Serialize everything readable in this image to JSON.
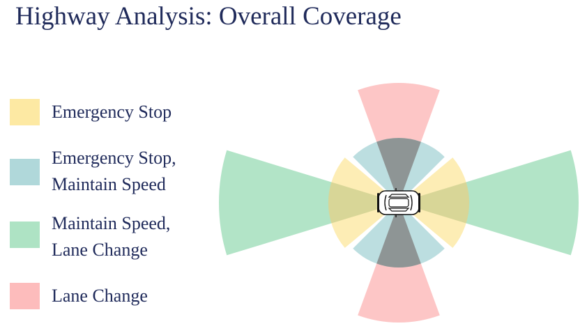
{
  "page": {
    "title": "Highway Analysis: Overall Coverage"
  },
  "legend": [
    {
      "lines": [
        "Emergency Stop"
      ],
      "color": "#fde9a3"
    },
    {
      "lines": [
        "Emergency Stop,",
        "Maintain Speed"
      ],
      "color": "#b0d8da"
    },
    {
      "lines": [
        "Maintain Speed,",
        "Lane Change"
      ],
      "color": "#aee3c4"
    },
    {
      "lines": [
        "Lane Change"
      ],
      "color": "#fdbcbc"
    }
  ],
  "diagram": {
    "icon": "car-icon",
    "colors": {
      "emergency_stop": "#fde9a3",
      "emergency_stop_maintain_speed": "#b0d8da",
      "maintain_speed_lane_change": "#aee3c4",
      "lane_change": "#fdbcbc"
    }
  }
}
